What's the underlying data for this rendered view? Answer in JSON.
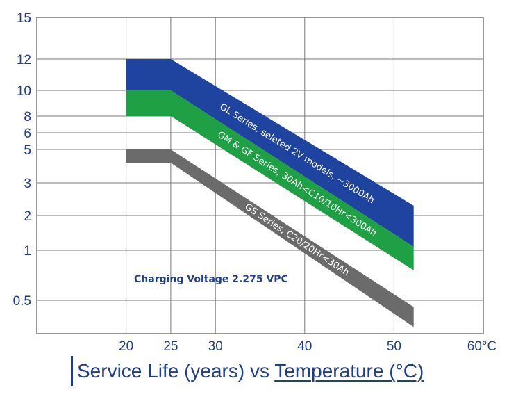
{
  "chart_data": {
    "type": "area",
    "title": "",
    "caption": {
      "part1": "Service Life (years) vs ",
      "part2": "Temperature (°C)"
    },
    "x_ticks": [
      "20",
      "25",
      "30",
      "40",
      "50",
      "60°C"
    ],
    "x_tick_values": [
      20,
      25,
      30,
      40,
      50,
      60
    ],
    "xlim": [
      10,
      60
    ],
    "y_ticks": [
      "15",
      "12",
      "10",
      "8",
      "6",
      "5",
      "3",
      "2",
      "1",
      "0.5"
    ],
    "y_tick_values": [
      15,
      12,
      10,
      8,
      6,
      5,
      3,
      2,
      1,
      0.5
    ],
    "y_scale": "nonlinear (tick rows as printed)",
    "grid": true,
    "annotation": "Charging Voltage 2.275 VPC",
    "series": [
      {
        "name": "GL Series, seleted 2V models, ~3000Ah",
        "color": "#1f44a0",
        "upper": [
          [
            20,
            12
          ],
          [
            25,
            12
          ],
          [
            52.2,
            2.3
          ]
        ],
        "lower": [
          [
            20,
            10
          ],
          [
            25,
            10
          ],
          [
            52.2,
            1.1
          ]
        ]
      },
      {
        "name": "GM & GF Series, 30Ah<C10/10Hr<300Ah",
        "color": "#1fa045",
        "upper": [
          [
            20,
            10
          ],
          [
            25,
            10
          ],
          [
            52.2,
            1.1
          ]
        ],
        "lower": [
          [
            20,
            8
          ],
          [
            25,
            8
          ],
          [
            52.2,
            0.8
          ]
        ]
      },
      {
        "name": "GS Series, C20/20Hr<30Ah",
        "color": "#6b6b6b",
        "upper": [
          [
            20,
            5
          ],
          [
            25,
            5
          ],
          [
            52.2,
            0.45
          ]
        ],
        "lower": [
          [
            20,
            4.2
          ],
          [
            25,
            4.2
          ],
          [
            52.2,
            0.3
          ]
        ]
      }
    ]
  }
}
